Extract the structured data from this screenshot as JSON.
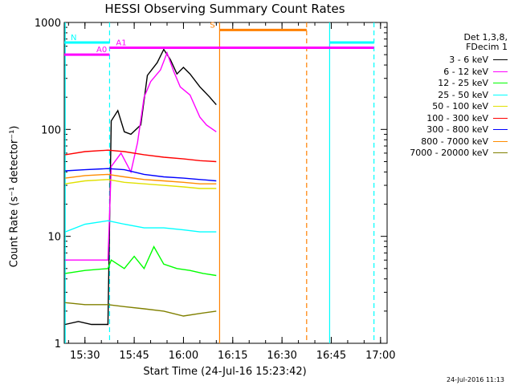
{
  "chart_data": {
    "type": "line",
    "title": "HESSI Observing Summary Count Rates",
    "xlabel": "Start Time (24-Jul-16 15:23:42)",
    "ylabel": "Count Rate (s⁻¹ detector⁻¹)",
    "y_scale": "log",
    "ylim": [
      1,
      1000
    ],
    "xlim": [
      "15:23:42",
      "17:02:00"
    ],
    "x_ticks": [
      "15:30",
      "15:45",
      "16:00",
      "16:15",
      "16:30",
      "16:45",
      "17:00"
    ],
    "y_ticks": [
      "1",
      "10",
      "100",
      "1000"
    ],
    "legend_header": [
      "Det 1,3,8,",
      "FDecim 1"
    ],
    "legend_position": "right",
    "series": [
      {
        "name": "3 - 6 keV",
        "color": "#000000",
        "points": [
          [
            "15:24",
            1.5
          ],
          [
            "15:28",
            1.6
          ],
          [
            "15:32",
            1.5
          ],
          [
            "15:37",
            1.5
          ],
          [
            "15:38",
            120
          ],
          [
            "15:40",
            150
          ],
          [
            "15:42",
            95
          ],
          [
            "15:44",
            90
          ],
          [
            "15:47",
            110
          ],
          [
            "15:49",
            320
          ],
          [
            "15:52",
            420
          ],
          [
            "15:54",
            560
          ],
          [
            "15:56",
            450
          ],
          [
            "15:58",
            330
          ],
          [
            "16:00",
            380
          ],
          [
            "16:02",
            330
          ],
          [
            "16:05",
            250
          ],
          [
            "16:08",
            200
          ],
          [
            "16:10",
            170
          ]
        ]
      },
      {
        "name": "6 - 12 keV",
        "color": "#ff00ff",
        "points": [
          [
            "15:24",
            6
          ],
          [
            "15:28",
            6
          ],
          [
            "15:32",
            6
          ],
          [
            "15:37",
            6
          ],
          [
            "15:38",
            45
          ],
          [
            "15:41",
            60
          ],
          [
            "15:44",
            40
          ],
          [
            "15:46",
            75
          ],
          [
            "15:48",
            200
          ],
          [
            "15:50",
            280
          ],
          [
            "15:53",
            360
          ],
          [
            "15:55",
            520
          ],
          [
            "15:57",
            350
          ],
          [
            "15:59",
            250
          ],
          [
            "16:02",
            210
          ],
          [
            "16:05",
            130
          ],
          [
            "16:07",
            110
          ],
          [
            "16:10",
            95
          ]
        ]
      },
      {
        "name": "12 - 25 keV",
        "color": "#00ff00",
        "points": [
          [
            "15:24",
            4.5
          ],
          [
            "15:30",
            4.8
          ],
          [
            "15:37",
            5
          ],
          [
            "15:38",
            6
          ],
          [
            "15:42",
            5
          ],
          [
            "15:45",
            6.5
          ],
          [
            "15:48",
            5
          ],
          [
            "15:51",
            8
          ],
          [
            "15:54",
            5.5
          ],
          [
            "15:58",
            5
          ],
          [
            "16:02",
            4.8
          ],
          [
            "16:06",
            4.5
          ],
          [
            "16:10",
            4.3
          ]
        ]
      },
      {
        "name": "25 - 50 keV",
        "color": "#00ffff",
        "points": [
          [
            "15:24",
            11
          ],
          [
            "15:30",
            13
          ],
          [
            "15:37",
            14
          ],
          [
            "15:42",
            13
          ],
          [
            "15:48",
            12
          ],
          [
            "15:54",
            12
          ],
          [
            "16:00",
            11.5
          ],
          [
            "16:05",
            11
          ],
          [
            "16:10",
            11
          ]
        ]
      },
      {
        "name": "50 - 100 keV",
        "color": "#e0e000",
        "points": [
          [
            "15:24",
            31
          ],
          [
            "15:30",
            33
          ],
          [
            "15:37",
            34
          ],
          [
            "15:42",
            32
          ],
          [
            "15:48",
            31
          ],
          [
            "15:54",
            30
          ],
          [
            "16:00",
            29
          ],
          [
            "16:05",
            28
          ],
          [
            "16:10",
            28
          ]
        ]
      },
      {
        "name": "100 - 300 keV",
        "color": "#ff0000",
        "points": [
          [
            "15:24",
            58
          ],
          [
            "15:30",
            62
          ],
          [
            "15:37",
            64
          ],
          [
            "15:42",
            62
          ],
          [
            "15:48",
            58
          ],
          [
            "15:54",
            55
          ],
          [
            "16:00",
            53
          ],
          [
            "16:05",
            51
          ],
          [
            "16:10",
            50
          ]
        ]
      },
      {
        "name": "300 - 800 keV",
        "color": "#0000ff",
        "points": [
          [
            "15:24",
            41
          ],
          [
            "15:30",
            42
          ],
          [
            "15:37",
            43
          ],
          [
            "15:42",
            42
          ],
          [
            "15:48",
            38
          ],
          [
            "15:54",
            36
          ],
          [
            "16:00",
            35
          ],
          [
            "16:05",
            34
          ],
          [
            "16:10",
            33
          ]
        ]
      },
      {
        "name": "800 - 7000 keV",
        "color": "#ff8c00",
        "points": [
          [
            "15:24",
            35
          ],
          [
            "15:30",
            37
          ],
          [
            "15:37",
            38
          ],
          [
            "15:42",
            36
          ],
          [
            "15:48",
            34
          ],
          [
            "15:54",
            33
          ],
          [
            "16:00",
            32
          ],
          [
            "16:05",
            31
          ],
          [
            "16:10",
            31
          ]
        ]
      },
      {
        "name": "7000 - 20000 keV",
        "color": "#808000",
        "points": [
          [
            "15:24",
            2.4
          ],
          [
            "15:30",
            2.3
          ],
          [
            "15:37",
            2.3
          ],
          [
            "15:42",
            2.2
          ],
          [
            "15:48",
            2.1
          ],
          [
            "15:54",
            2.0
          ],
          [
            "16:00",
            1.8
          ],
          [
            "16:05",
            1.9
          ],
          [
            "16:10",
            2.0
          ]
        ]
      }
    ],
    "annotations": [
      {
        "label": "N",
        "color": "#00ffff",
        "start": "15:23:42",
        "end": "15:37:30",
        "level": 650
      },
      {
        "label": "",
        "color": "#00ffff",
        "start": "16:44:30",
        "end": "16:58:00",
        "level": 650
      },
      {
        "label": "A0",
        "color": "#ff00ff",
        "start": "15:23:42",
        "end": "15:37:30",
        "level": 500
      },
      {
        "label": "A1",
        "color": "#ff00ff",
        "start": "15:37:30",
        "end": "16:58:00",
        "level": 580
      },
      {
        "label": "S",
        "color": "#ff8000",
        "start": "16:11:00",
        "end": "16:37:30",
        "level": 850
      }
    ],
    "vlines": [
      {
        "time": "15:24:00",
        "color": "#00ffff",
        "style": "solid"
      },
      {
        "time": "15:37:30",
        "color": "#00ffff",
        "style": "dashed"
      },
      {
        "time": "16:11:00",
        "color": "#ff8000",
        "style": "solid"
      },
      {
        "time": "16:37:30",
        "color": "#ff8000",
        "style": "dashed"
      },
      {
        "time": "16:44:30",
        "color": "#00ffff",
        "style": "solid"
      },
      {
        "time": "16:58:00",
        "color": "#00ffff",
        "style": "dashed"
      }
    ]
  },
  "footer": {
    "timestamp": "24-Jul-2016 11:13"
  }
}
